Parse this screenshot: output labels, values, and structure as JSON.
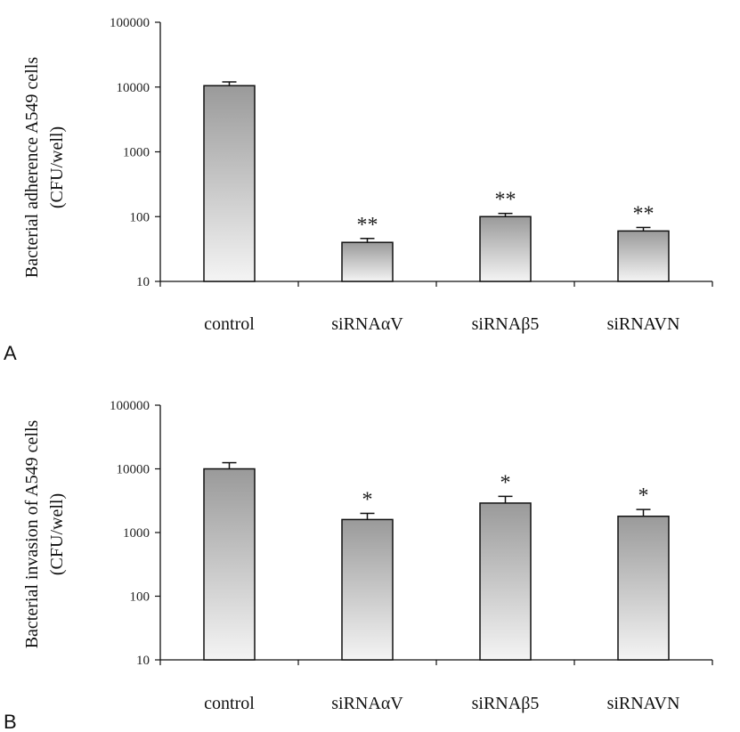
{
  "chart_data": [
    {
      "type": "bar",
      "panel_label": "A",
      "yscale": "log",
      "ylim": [
        10,
        100000
      ],
      "yticks": [
        "10",
        "100",
        "1000",
        "10000",
        "100000"
      ],
      "ylabel": [
        "Bacterial adherence A549 cells",
        "(CFU/well)"
      ],
      "categories": [
        "control",
        "siRNAαV",
        "siRNAβ5",
        "siRNAVN"
      ],
      "values": [
        10500,
        40,
        100,
        60
      ],
      "errors_upper": [
        12000,
        46,
        112,
        68
      ],
      "significance": [
        "",
        "**",
        "**",
        "**"
      ],
      "colors": {
        "bar_top": "#9a9a9a",
        "bar_bottom": "#f4f4f4",
        "stroke": "#111111"
      }
    },
    {
      "type": "bar",
      "panel_label": "B",
      "yscale": "log",
      "ylim": [
        10,
        100000
      ],
      "yticks": [
        "10",
        "100",
        "1000",
        "10000",
        "100000"
      ],
      "ylabel": [
        "Bacterial invasion of A549 cells",
        "(CFU/well)"
      ],
      "categories": [
        "control",
        "siRNAαV",
        "siRNAβ5",
        "siRNAVN"
      ],
      "values": [
        10000,
        1600,
        2900,
        1800
      ],
      "errors_upper": [
        12500,
        2000,
        3700,
        2300
      ],
      "significance": [
        "",
        "*",
        "*",
        "*"
      ],
      "colors": {
        "bar_top": "#9a9a9a",
        "bar_bottom": "#f4f4f4",
        "stroke": "#111111"
      }
    }
  ]
}
